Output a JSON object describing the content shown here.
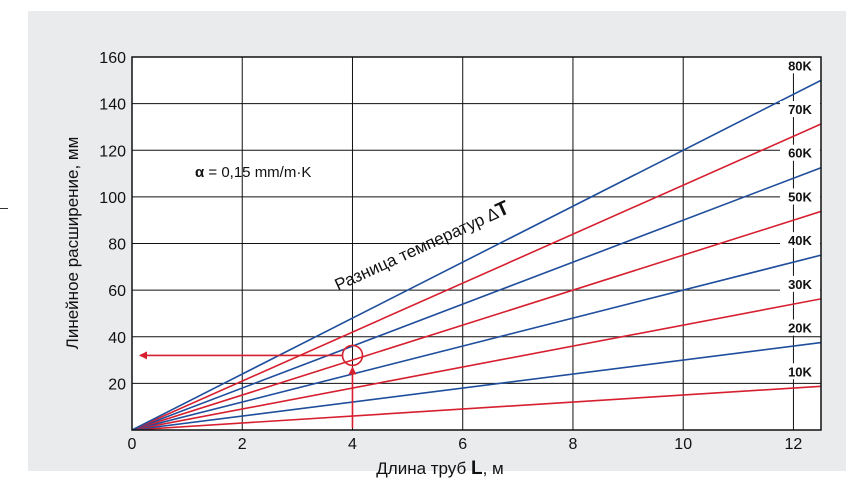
{
  "chart_data": {
    "type": "line",
    "title": "",
    "xlabel_prefix": "Длина труб ",
    "xlabel_bold": "L",
    "xlabel_suffix": ", м",
    "ylabel": "Линейное расширение, мм",
    "xlim": [
      0,
      12.5
    ],
    "ylim": [
      0,
      160
    ],
    "x_ticks": [
      0,
      2,
      4,
      6,
      8,
      10,
      12
    ],
    "y_ticks": [
      20,
      40,
      60,
      80,
      100,
      120,
      140,
      160
    ],
    "x_tick_labels": [
      "0",
      "2",
      "4",
      "6",
      "8",
      "10",
      "12"
    ],
    "y_tick_labels": [
      "20",
      "40",
      "60",
      "80",
      "100",
      "120",
      "140",
      "160"
    ],
    "grid": true,
    "alpha_label_bold": "α",
    "alpha_label_text": " = 0,15 mm/m·K",
    "delta_label_prefix": "Разница температур ",
    "delta_label_symbol": "∆",
    "delta_label_bold": "T",
    "coefficient": 0.15,
    "series": [
      {
        "name": "10K",
        "deltaT": 10,
        "color": "#d6202f",
        "x": [
          0,
          12.5
        ],
        "values": [
          0,
          18.75
        ]
      },
      {
        "name": "20K",
        "deltaT": 20,
        "color": "#1f4e9c",
        "x": [
          0,
          12.5
        ],
        "values": [
          0,
          37.5
        ]
      },
      {
        "name": "30K",
        "deltaT": 30,
        "color": "#d6202f",
        "x": [
          0,
          12.5
        ],
        "values": [
          0,
          56.25
        ]
      },
      {
        "name": "40K",
        "deltaT": 40,
        "color": "#1f4e9c",
        "x": [
          0,
          12.5
        ],
        "values": [
          0,
          75
        ]
      },
      {
        "name": "50K",
        "deltaT": 50,
        "color": "#d6202f",
        "x": [
          0,
          12.5
        ],
        "values": [
          0,
          93.75
        ]
      },
      {
        "name": "60K",
        "deltaT": 60,
        "color": "#1f4e9c",
        "x": [
          0,
          12.5
        ],
        "values": [
          0,
          112.5
        ]
      },
      {
        "name": "70K",
        "deltaT": 70,
        "color": "#d6202f",
        "x": [
          0,
          12.5
        ],
        "values": [
          0,
          131.25
        ]
      },
      {
        "name": "80K",
        "deltaT": 80,
        "color": "#1f4e9c",
        "x": [
          0,
          12.5
        ],
        "values": [
          0,
          150
        ]
      }
    ],
    "example": {
      "x": 4,
      "y": 32,
      "color": "#d6202f"
    }
  }
}
